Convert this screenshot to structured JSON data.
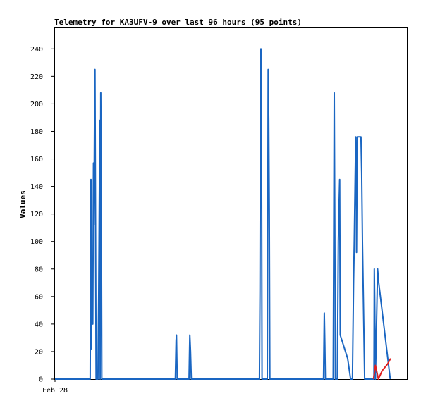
{
  "chart_data": {
    "type": "line",
    "title": "Telemetry for KA3UFV-9 over last 96 hours (95 points)",
    "ylabel": "Values",
    "xlabel": "",
    "ylim": [
      0,
      255
    ],
    "yticks": [
      0,
      20,
      40,
      60,
      80,
      100,
      120,
      140,
      160,
      180,
      200,
      220,
      240
    ],
    "xlim": [
      0,
      95
    ],
    "xticks": [
      {
        "x": 0,
        "label": "Feb 28"
      }
    ],
    "grid": false,
    "series": [
      {
        "color": "#1a66c2",
        "points": [
          [
            0,
            0
          ],
          [
            9.5,
            0
          ],
          [
            9.6,
            80
          ],
          [
            9.7,
            145
          ],
          [
            9.85,
            22
          ],
          [
            10.0,
            72
          ],
          [
            10.2,
            40
          ],
          [
            10.4,
            157
          ],
          [
            10.5,
            112
          ],
          [
            10.7,
            202
          ],
          [
            10.8,
            225
          ],
          [
            10.95,
            112
          ],
          [
            11.1,
            0
          ],
          [
            11.6,
            0
          ],
          [
            11.8,
            62
          ],
          [
            12.0,
            140
          ],
          [
            12.1,
            188
          ],
          [
            12.2,
            0
          ],
          [
            12.35,
            208
          ],
          [
            12.5,
            128
          ],
          [
            12.65,
            0
          ],
          [
            32.5,
            0
          ],
          [
            32.7,
            28
          ],
          [
            32.8,
            32
          ],
          [
            33.0,
            0
          ],
          [
            36.2,
            0
          ],
          [
            36.4,
            32
          ],
          [
            36.6,
            20
          ],
          [
            36.8,
            0
          ],
          [
            55.2,
            0
          ],
          [
            55.35,
            65
          ],
          [
            55.5,
            205
          ],
          [
            55.6,
            240
          ],
          [
            55.75,
            180
          ],
          [
            55.9,
            0
          ],
          [
            57.3,
            0
          ],
          [
            57.45,
            112
          ],
          [
            57.55,
            225
          ],
          [
            57.7,
            188
          ],
          [
            57.85,
            120
          ],
          [
            58.0,
            0
          ],
          [
            72.5,
            0
          ],
          [
            72.7,
            48
          ],
          [
            72.85,
            25
          ],
          [
            73.0,
            0
          ],
          [
            75.1,
            0
          ],
          [
            75.25,
            104
          ],
          [
            75.4,
            208
          ],
          [
            75.55,
            112
          ],
          [
            75.7,
            0
          ],
          [
            76.2,
            0
          ],
          [
            76.35,
            45
          ],
          [
            76.5,
            100
          ],
          [
            76.7,
            128
          ],
          [
            76.85,
            145
          ],
          [
            77.0,
            32
          ],
          [
            79.0,
            15
          ],
          [
            79.8,
            0
          ],
          [
            80.3,
            0
          ],
          [
            80.6,
            70
          ],
          [
            80.8,
            100
          ],
          [
            81.0,
            140
          ],
          [
            81.2,
            176
          ],
          [
            81.4,
            92
          ],
          [
            81.6,
            176
          ],
          [
            82.6,
            176
          ],
          [
            82.8,
            150
          ],
          [
            83.0,
            100
          ],
          [
            83.6,
            0
          ],
          [
            86.1,
            0
          ],
          [
            86.2,
            80
          ],
          [
            86.3,
            60
          ],
          [
            86.5,
            0
          ],
          [
            87.1,
            80
          ],
          [
            87.4,
            70
          ],
          [
            90.5,
            0
          ]
        ]
      },
      {
        "color": "#e02020",
        "points": [
          [
            86.0,
            0
          ],
          [
            86.5,
            10
          ],
          [
            87.3,
            0
          ],
          [
            88.3,
            6
          ],
          [
            89.8,
            11
          ],
          [
            90.6,
            15
          ]
        ]
      }
    ]
  }
}
